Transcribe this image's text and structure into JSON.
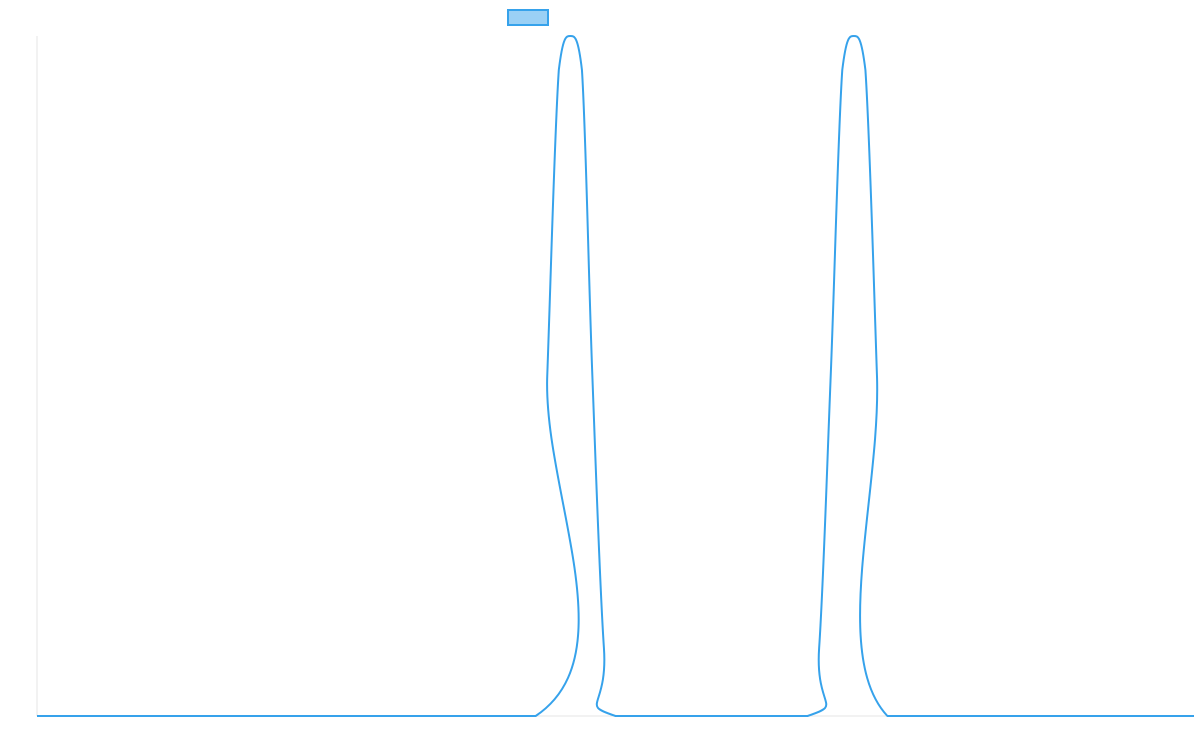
{
  "chart_data": {
    "type": "line",
    "title": "",
    "xlabel": "",
    "ylabel": "",
    "grid": false,
    "legend": {
      "placement": "top-center",
      "show_label": false
    },
    "colors": {
      "line": "#36A2EB",
      "legend_fill": "#9AD0F5",
      "axis": "#E5E5E5"
    },
    "xlim": [
      0,
      1
    ],
    "ylim": [
      0,
      1
    ],
    "series": [
      {
        "x": [
          0,
          0.431,
          0.441,
          0.451,
          0.461,
          0.471,
          0.48,
          0.49,
          0.5,
          0.666,
          0.676,
          0.686,
          0.696,
          0.706,
          0.716,
          0.726,
          0.735,
          1.0
        ],
        "values": [
          0,
          0,
          0.5,
          0.95,
          1.0,
          0.95,
          0.5,
          0.1,
          0,
          0,
          0.1,
          0.5,
          0.95,
          1.0,
          0.95,
          0.5,
          0,
          0
        ]
      }
    ]
  }
}
